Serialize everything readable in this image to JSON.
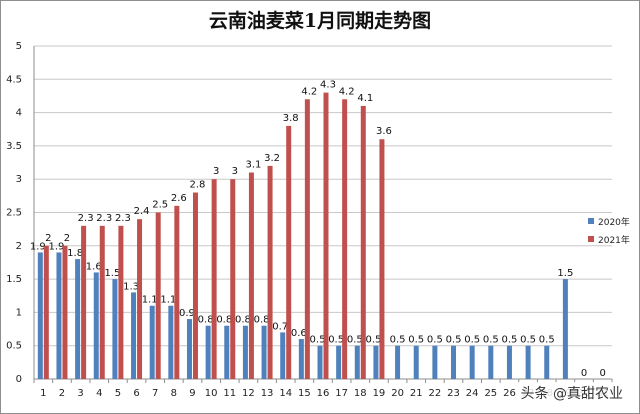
{
  "chart_data": {
    "type": "bar",
    "title": "云南油麦菜1月同期走势图",
    "xlabel": "",
    "ylabel": "",
    "ylim": [
      0,
      5
    ],
    "yticks": [
      "0",
      "0.5",
      "1",
      "1.5",
      "2",
      "2.5",
      "3",
      "3.5",
      "4",
      "4.5",
      "5"
    ],
    "categories": [
      "1",
      "2",
      "3",
      "4",
      "5",
      "6",
      "7",
      "8",
      "9",
      "10",
      "11",
      "12",
      "13",
      "14",
      "15",
      "16",
      "17",
      "18",
      "19",
      "20",
      "21",
      "22",
      "23",
      "24",
      "25",
      "26",
      "27",
      "28",
      "29",
      "30",
      "31"
    ],
    "grid": true,
    "legend_position": "right",
    "series": [
      {
        "name": "2020年",
        "color": "#4f81bd",
        "values": [
          1.9,
          1.9,
          1.8,
          1.6,
          1.5,
          1.3,
          1.1,
          1.1,
          0.9,
          0.8,
          0.8,
          0.8,
          0.8,
          0.7,
          0.6,
          0.5,
          0.5,
          0.5,
          0.5,
          0.5,
          0.5,
          0.5,
          0.5,
          0.5,
          0.5,
          0.5,
          0.5,
          0.5,
          1.5,
          0,
          0
        ]
      },
      {
        "name": "2021年",
        "color": "#c0504d",
        "values": [
          2,
          2,
          2.3,
          2.3,
          2.3,
          2.4,
          2.5,
          2.6,
          2.8,
          3,
          3,
          3.1,
          3.2,
          3.8,
          4.2,
          4.3,
          4.2,
          4.1,
          3.6,
          null,
          null,
          null,
          null,
          null,
          null,
          null,
          null,
          null,
          null,
          null,
          null
        ]
      }
    ]
  },
  "watermark": "头条 @真甜农业"
}
